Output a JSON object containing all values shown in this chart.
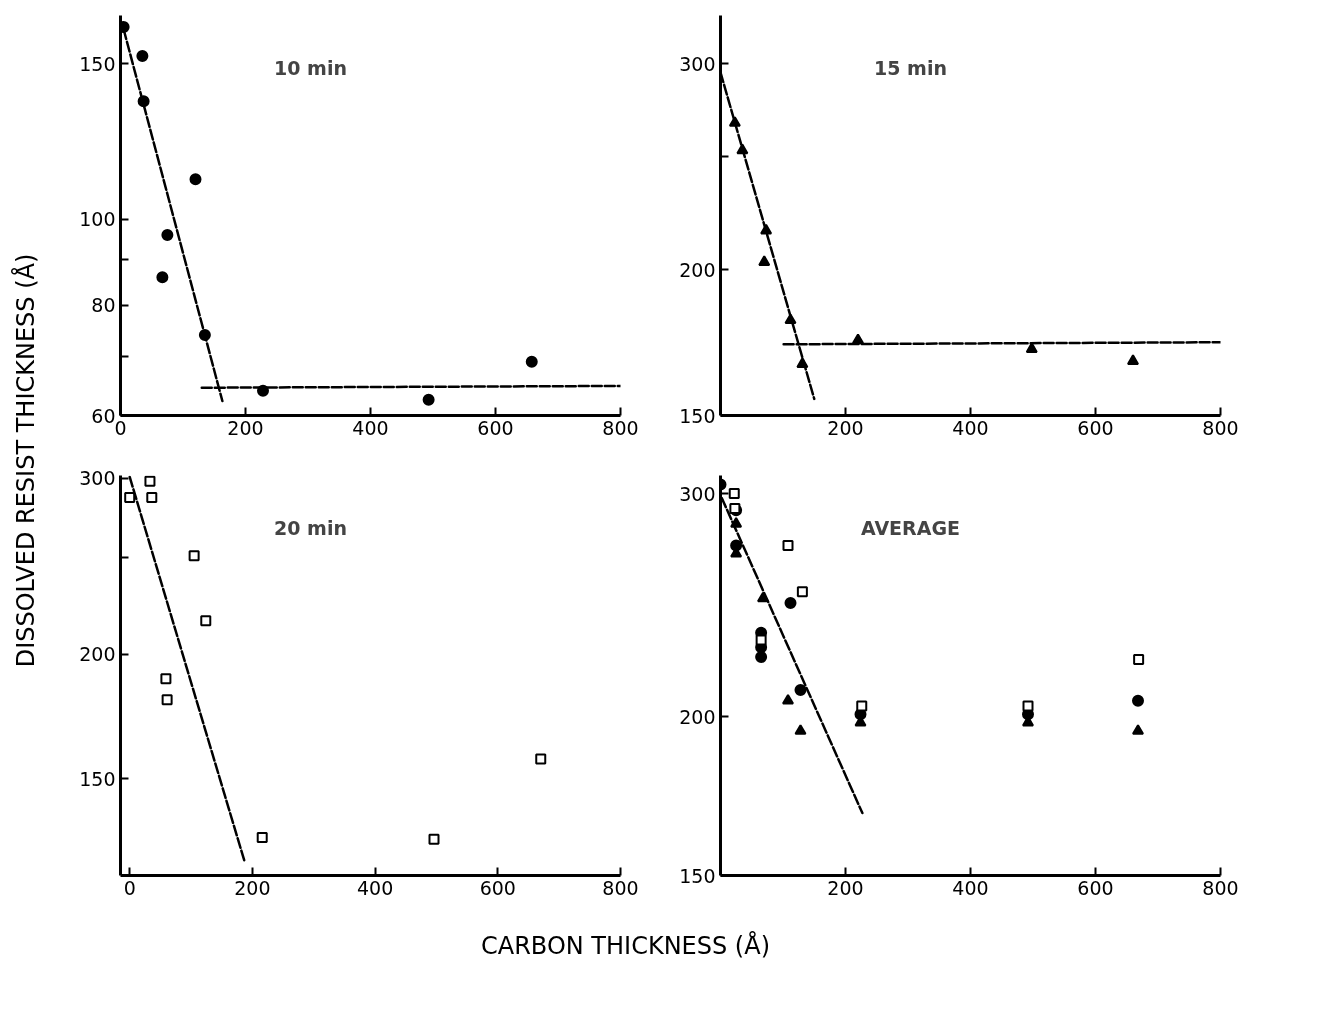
{
  "chart_data": [
    {
      "type": "scatter",
      "title": "10 min",
      "ylabel": "DISSOLVED RESIST THICKNESS (Å)",
      "log": true,
      "xlim": [
        0,
        800
      ],
      "ylim": [
        60,
        170
      ],
      "xticks": [
        0,
        200,
        400,
        600,
        800
      ],
      "yticks": [
        60,
        {
          "value": 70,
          "label": null
        },
        80,
        {
          "value": 90,
          "label": null
        },
        100,
        150
      ],
      "series": [
        {
          "color": "#000000",
          "marker": "circle",
          "x": [
            5,
            35,
            37,
            120,
            75,
            67,
            135,
            228,
            493,
            658
          ],
          "values": [
            165,
            153,
            136,
            111,
            96,
            86,
            74,
            64,
            62.5,
            69
          ]
        },
        {
          "type": "line",
          "color": "#000000",
          "line_style": "dashed",
          "marker": "none",
          "x": [
            5,
            163
          ],
          "values": [
            164,
            62.3
          ]
        },
        {
          "type": "line",
          "color": "#000000",
          "line_style": "dashed",
          "marker": "none",
          "x": [
            130,
            800
          ],
          "values": [
            64.5,
            64.8
          ]
        }
      ]
    },
    {
      "type": "scatter",
      "title": "15 min",
      "log": true,
      "xlim": [
        0,
        800
      ],
      "ylim": [
        150,
        330
      ],
      "xticks": [
        200,
        400,
        600,
        800
      ],
      "yticks": [
        150,
        200,
        {
          "value": 250,
          "label": null
        },
        300
      ],
      "series": [
        {
          "color": "#000000",
          "marker": "triangle",
          "x": [
            23,
            35,
            73,
            70,
            112,
            131,
            220,
            498,
            660
          ],
          "values": [
            267,
            253,
            216,
            203,
            181,
            166,
            174,
            171,
            167
          ]
        },
        {
          "type": "line",
          "color": "#000000",
          "line_style": "dashed",
          "marker": "none",
          "x": [
            0,
            150
          ],
          "values": [
            295,
            155
          ]
        },
        {
          "type": "line",
          "color": "#000000",
          "line_style": "dashed",
          "marker": "none",
          "x": [
            101,
            800
          ],
          "values": [
            172.6,
            173.3
          ]
        }
      ]
    },
    {
      "type": "scatter",
      "title": "20 min",
      "xlabel": "CARBON THICKNESS (Å)",
      "log": true,
      "xlim": [
        -15,
        800
      ],
      "ylim": [
        120,
        302
      ],
      "xticks": [
        0,
        200,
        400,
        600,
        800
      ],
      "yticks": [
        150,
        200,
        {
          "value": 250,
          "label": null
        },
        300
      ],
      "series": [
        {
          "color": "#000000",
          "marker": "square",
          "x": [
            0,
            33,
            36,
            105,
            124,
            59,
            61,
            216,
            496,
            670
          ],
          "values": [
            287,
            298,
            287,
            251,
            216,
            189,
            180,
            131,
            130.5,
            157
          ]
        },
        {
          "type": "line",
          "color": "#000000",
          "line_style": "dashed",
          "marker": "none",
          "x": [
            0,
            188
          ],
          "values": [
            301,
            123.5
          ]
        }
      ]
    },
    {
      "type": "scatter",
      "title": "AVERAGE",
      "log": true,
      "xlim": [
        0,
        800
      ],
      "ylim": [
        150,
        310
      ],
      "xticks": [
        200,
        400,
        600,
        800
      ],
      "yticks": [
        150,
        200,
        300
      ],
      "series": [
        {
          "color": "#000000",
          "marker": "circle",
          "x": [
            0,
            25,
            25,
            112,
            65,
            65,
            65,
            128,
            224,
            492,
            668
          ],
          "values": [
            305,
            291,
            273,
            246,
            233,
            227,
            223,
            210,
            201,
            201,
            206
          ]
        },
        {
          "color": "#000000",
          "marker": "triangle",
          "x": [
            25,
            25,
            68,
            108,
            128,
            224,
            492,
            668
          ],
          "values": [
            284,
            269,
            248,
            206,
            195,
            198,
            198,
            195
          ]
        },
        {
          "color": "#000000",
          "marker": "square",
          "x": [
            22,
            23,
            108,
            131,
            65,
            226,
            492,
            669
          ],
          "values": [
            300,
            292,
            273,
            251,
            230,
            204,
            204,
            222
          ]
        },
        {
          "type": "line",
          "color": "#000000",
          "line_style": "dashed",
          "marker": "none",
          "x": [
            2,
            227
          ],
          "values": [
            297.6,
            168
          ]
        }
      ]
    }
  ]
}
